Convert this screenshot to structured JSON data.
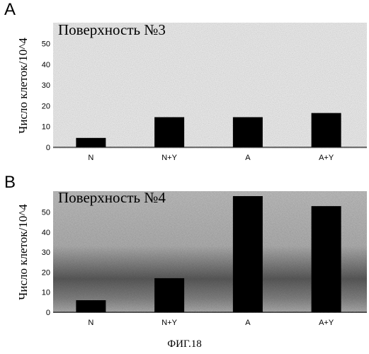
{
  "figure": {
    "caption": "ФИГ.18"
  },
  "chart_data": [
    {
      "panel": "A",
      "type": "bar",
      "title": "Поверхность №3",
      "ylabel": "Число клеток/10^4",
      "xlabel": "",
      "categories": [
        "N",
        "N+Y",
        "A",
        "A+Y"
      ],
      "values": [
        4.5,
        14.5,
        14.5,
        16.5
      ],
      "ylim": [
        0,
        58
      ],
      "yticks": [
        0,
        10,
        20,
        30,
        40,
        50
      ],
      "grid": false
    },
    {
      "panel": "B",
      "type": "bar",
      "title": "Поверхность №4",
      "ylabel": "Число клеток/10^4",
      "xlabel": "",
      "categories": [
        "N",
        "N+Y",
        "A",
        "A+Y"
      ],
      "values": [
        6,
        17,
        58,
        53
      ],
      "ylim": [
        0,
        58
      ],
      "yticks": [
        0,
        10,
        20,
        30,
        40,
        50
      ],
      "grid": false
    }
  ]
}
